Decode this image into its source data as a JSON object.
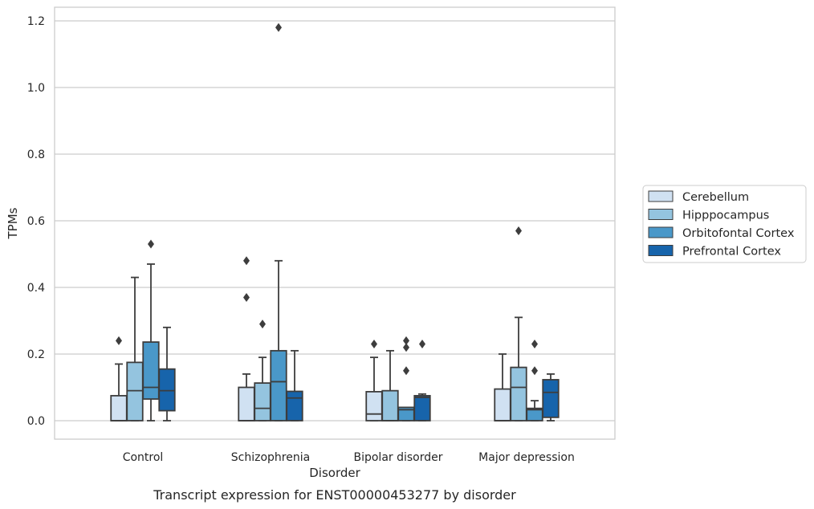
{
  "chart_data": {
    "type": "box",
    "title": "",
    "caption": "Transcript expression for ENST00000453277 by disorder",
    "xlabel": "Disorder",
    "ylabel": "TPMs",
    "ylim": [
      -0.055,
      1.24
    ],
    "yticks": [
      "0.0",
      "0.2",
      "0.4",
      "0.6",
      "0.8",
      "1.0",
      "1.2"
    ],
    "grid": "horizontal",
    "legend_position": "right",
    "categories": [
      "Control",
      "Schizophrenia",
      "Bipolar disorder",
      "Major depression"
    ],
    "series": [
      {
        "name": "Cerebellum",
        "color": "#d0e1f2",
        "boxes": [
          {
            "whisker_low": 0.0,
            "q1": 0.0,
            "median": 0.0,
            "q3": 0.075,
            "whisker_high": 0.17,
            "outliers": [
              0.24
            ]
          },
          {
            "whisker_low": 0.0,
            "q1": 0.0,
            "median": 0.0,
            "q3": 0.1,
            "whisker_high": 0.14,
            "outliers": [
              0.37,
              0.48
            ]
          },
          {
            "whisker_low": 0.0,
            "q1": 0.0,
            "median": 0.02,
            "q3": 0.087,
            "whisker_high": 0.19,
            "outliers": [
              0.23
            ]
          },
          {
            "whisker_low": 0.0,
            "q1": 0.0,
            "median": 0.0,
            "q3": 0.095,
            "whisker_high": 0.2,
            "outliers": []
          }
        ]
      },
      {
        "name": "Hipppocampus",
        "color": "#94c4df",
        "boxes": [
          {
            "whisker_low": 0.0,
            "q1": 0.0,
            "median": 0.09,
            "q3": 0.175,
            "whisker_high": 0.43,
            "outliers": []
          },
          {
            "whisker_low": 0.0,
            "q1": 0.0,
            "median": 0.037,
            "q3": 0.113,
            "whisker_high": 0.19,
            "outliers": [
              0.29
            ]
          },
          {
            "whisker_low": 0.0,
            "q1": 0.0,
            "median": 0.0,
            "q3": 0.09,
            "whisker_high": 0.21,
            "outliers": []
          },
          {
            "whisker_low": 0.0,
            "q1": 0.0,
            "median": 0.1,
            "q3": 0.16,
            "whisker_high": 0.31,
            "outliers": [
              0.57
            ]
          }
        ]
      },
      {
        "name": "Orbitofontal Cortex",
        "color": "#4a98c9",
        "boxes": [
          {
            "whisker_low": 0.0,
            "q1": 0.065,
            "median": 0.1,
            "q3": 0.236,
            "whisker_high": 0.47,
            "outliers": [
              0.53
            ]
          },
          {
            "whisker_low": 0.0,
            "q1": 0.0,
            "median": 0.117,
            "q3": 0.21,
            "whisker_high": 0.48,
            "outliers": [
              1.18
            ]
          },
          {
            "whisker_low": 0.0,
            "q1": 0.0,
            "median": 0.033,
            "q3": 0.04,
            "whisker_high": 0.04,
            "outliers": [
              0.15,
              0.22,
              0.24
            ]
          },
          {
            "whisker_low": 0.0,
            "q1": 0.0,
            "median": 0.033,
            "q3": 0.037,
            "whisker_high": 0.06,
            "outliers": [
              0.15,
              0.23
            ]
          }
        ]
      },
      {
        "name": "Prefrontal Cortex",
        "color": "#1764ab",
        "boxes": [
          {
            "whisker_low": 0.0,
            "q1": 0.03,
            "median": 0.09,
            "q3": 0.155,
            "whisker_high": 0.28,
            "outliers": []
          },
          {
            "whisker_low": 0.0,
            "q1": 0.0,
            "median": 0.068,
            "q3": 0.088,
            "whisker_high": 0.21,
            "outliers": []
          },
          {
            "whisker_low": 0.0,
            "q1": 0.0,
            "median": 0.07,
            "q3": 0.075,
            "whisker_high": 0.08,
            "outliers": [
              0.23
            ]
          },
          {
            "whisker_low": 0.0,
            "q1": 0.01,
            "median": 0.085,
            "q3": 0.123,
            "whisker_high": 0.14,
            "outliers": []
          }
        ]
      }
    ]
  }
}
